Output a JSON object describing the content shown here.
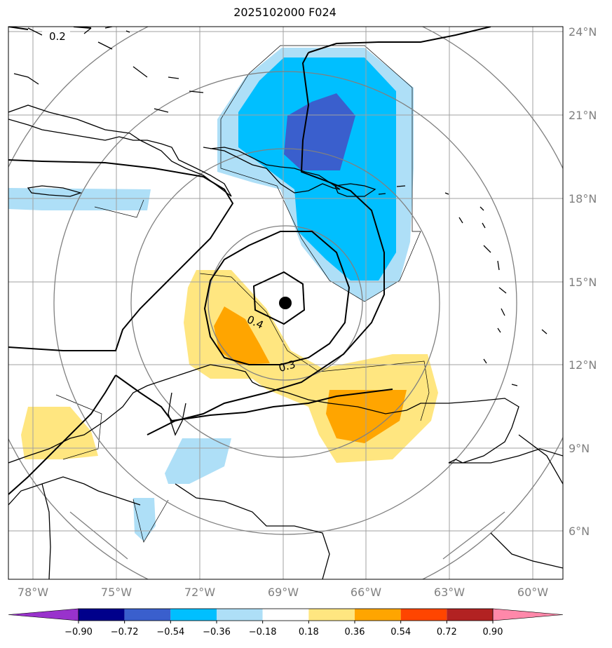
{
  "title": "2025102000 F024",
  "lon_ticks": [
    "78°W",
    "75°W",
    "72°W",
    "69°W",
    "66°W",
    "63°W",
    "60°W"
  ],
  "lat_ticks": [
    "24°N",
    "21°N",
    "18°N",
    "15°N",
    "12°N",
    "9°N",
    "6°N"
  ],
  "contour_labels": [
    "0.2",
    "0.4",
    "0.3"
  ],
  "colorbar": {
    "labels": [
      "−0.90",
      "−0.72",
      "−0.54",
      "−0.36",
      "−0.18",
      "0.18",
      "0.36",
      "0.54",
      "0.72",
      "0.90"
    ],
    "colors": [
      "#9932cc",
      "#00008b",
      "#3a5fcd",
      "#00bfff",
      "#aedff7",
      "#ffffff",
      "#ffe680",
      "#ffa500",
      "#ff4500",
      "#b22222",
      "#ff88aa"
    ]
  },
  "colors": {
    "dark_blue": "#3a5fcd",
    "blue": "#00bfff",
    "light_blue": "#aedff7",
    "yellow": "#ffe680",
    "orange": "#ffa500",
    "grid": "#a0a0a0",
    "ring": "#808080"
  }
}
